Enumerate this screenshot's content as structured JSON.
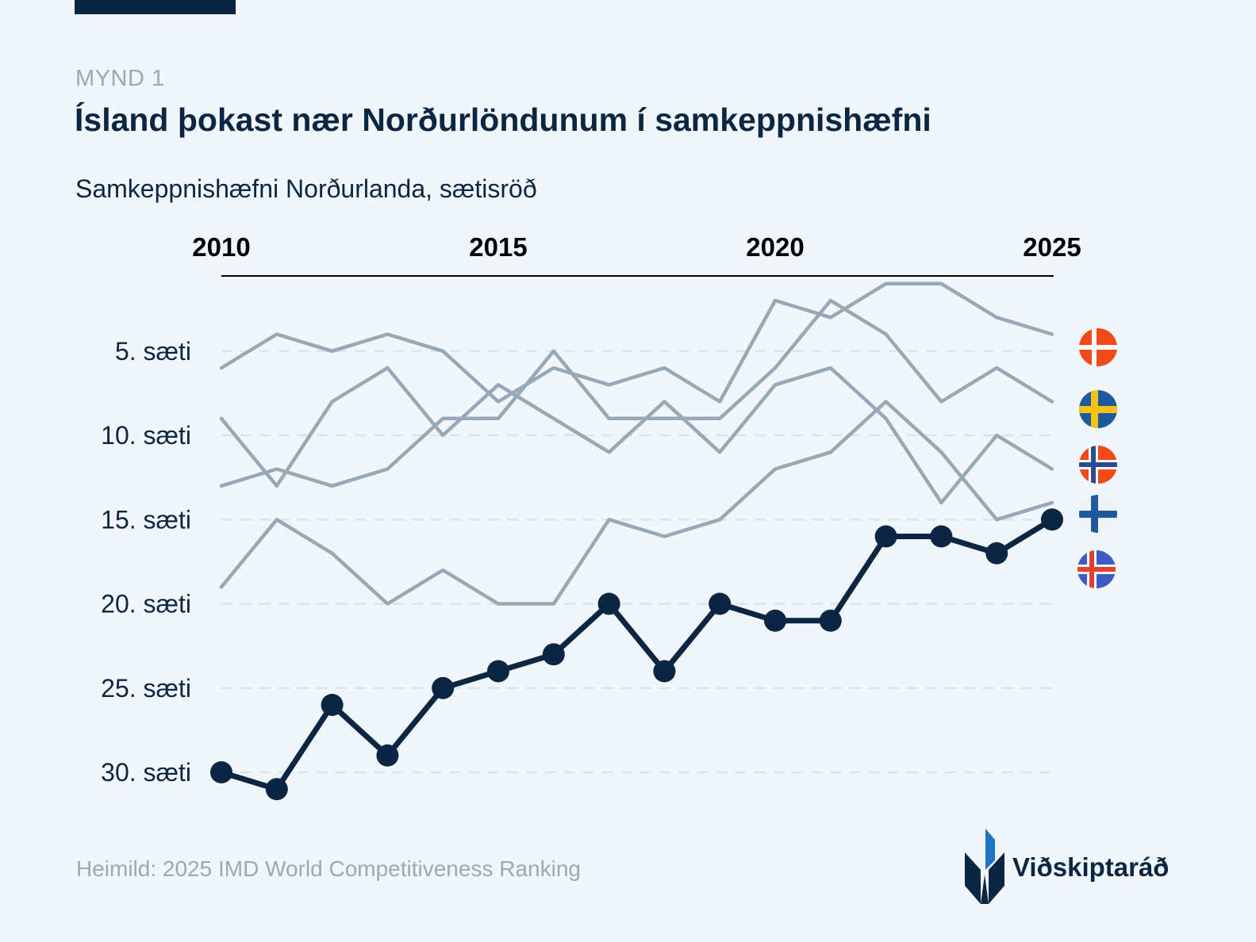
{
  "header": {
    "figure_label": "MYND 1",
    "title": "Ísland þokast nær Norðurlöndunum í samkeppnishæfni",
    "subtitle": "Samkeppnishæfni Norðurlanda, sætisröð"
  },
  "footer": {
    "source": "Heimild: 2025 IMD World Competitiveness Ranking",
    "logo_text": "Viðskiptaráð"
  },
  "colors": {
    "background": "#f1f6fa",
    "highlight": "#0b2642",
    "other_series": "#97a8b8",
    "grid": "#dde4ea",
    "muted_text": "#98a9ba",
    "logo_blue": "#1f74c4"
  },
  "chart_data": {
    "type": "line",
    "x": [
      2010,
      2011,
      2012,
      2013,
      2014,
      2015,
      2016,
      2017,
      2018,
      2019,
      2020,
      2021,
      2022,
      2023,
      2024,
      2025
    ],
    "x_ticks": [
      2010,
      2015,
      2020,
      2025
    ],
    "x_tick_labels": [
      "2010",
      "2015",
      "2020",
      "2025"
    ],
    "x_axis_position": "top",
    "y_ticks": [
      5,
      10,
      15,
      20,
      25,
      30
    ],
    "y_tick_labels": [
      "5. sæti",
      "10. sæti",
      "15. sæti",
      "20. sæti",
      "25. sæti",
      "30. sæti"
    ],
    "ylim": [
      1,
      32
    ],
    "y_inverted": true,
    "grid": "horizontal dashed",
    "legend": "flag icons at right",
    "series": [
      {
        "flag": "denmark-flag-icon",
        "highlight": false,
        "values": [
          6,
          4,
          5,
          4,
          5,
          8,
          6,
          7,
          6,
          8,
          2,
          3,
          1,
          1,
          3,
          4
        ]
      },
      {
        "flag": "sweden-flag-icon",
        "highlight": false,
        "values": [
          9,
          13,
          8,
          6,
          10,
          7,
          9,
          11,
          8,
          11,
          7,
          6,
          9,
          14,
          10,
          12
        ]
      },
      {
        "flag": "norway-flag-icon",
        "highlight": false,
        "values": [
          13,
          12,
          13,
          12,
          9,
          9,
          5,
          9,
          9,
          9,
          6,
          2,
          4,
          8,
          6,
          8
        ]
      },
      {
        "flag": "finland-flag-icon",
        "highlight": false,
        "values": [
          19,
          15,
          17,
          20,
          18,
          20,
          20,
          15,
          16,
          15,
          12,
          11,
          8,
          11,
          15,
          14
        ]
      },
      {
        "flag": "iceland-flag-icon",
        "highlight": true,
        "values": [
          30,
          31,
          26,
          29,
          25,
          24,
          23,
          20,
          24,
          20,
          21,
          21,
          16,
          16,
          17,
          15
        ]
      }
    ]
  }
}
